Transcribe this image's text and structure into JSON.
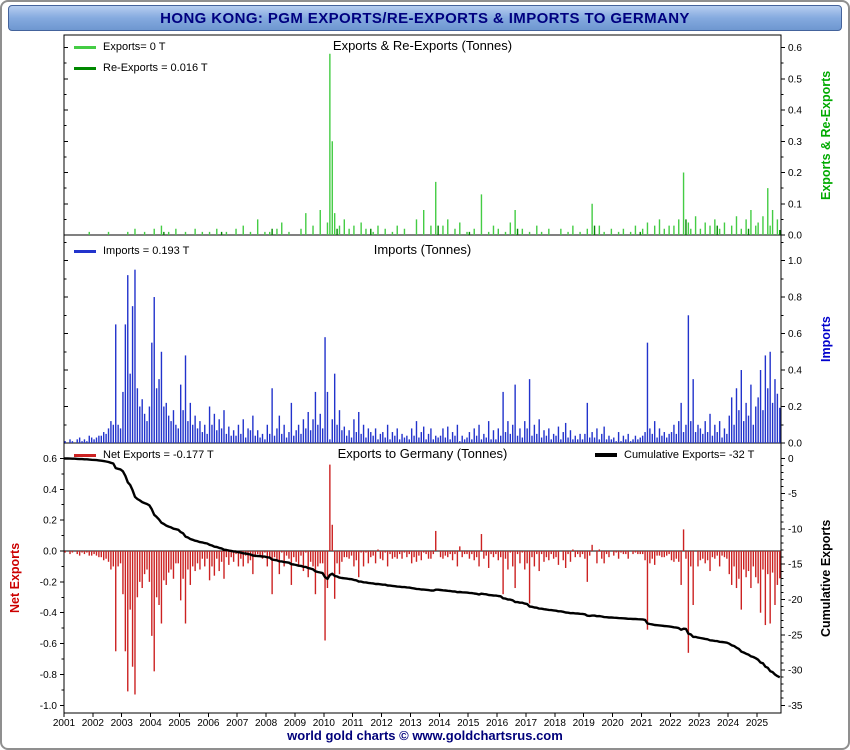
{
  "window": {
    "title": "HONG KONG: PGM EXPORTS/RE-EXPORTS & IMPORTS TO GERMANY",
    "footer": "world gold charts © www.goldchartsrus.com"
  },
  "colors": {
    "title_text": "#000080",
    "titlebar_gradient_top": "#b6cdf0",
    "titlebar_gradient_bottom": "#6e97d0",
    "exports": "#44cc44",
    "reexports": "#008800",
    "imports": "#2233cc",
    "net_exports": "#cc2222",
    "cumulative": "#000000",
    "axis_label_green": "#00aa00",
    "axis_label_blue": "#0000cc",
    "axis_label_red": "#cc0000",
    "footer_text": "#00007a"
  },
  "x_axis": {
    "start_year": 2001,
    "months": 298,
    "tick_years": [
      2001,
      2002,
      2003,
      2004,
      2005,
      2006,
      2007,
      2008,
      2009,
      2010,
      2011,
      2012,
      2013,
      2014,
      2015,
      2016,
      2017,
      2018,
      2019,
      2020,
      2021,
      2022,
      2023,
      2024,
      2025
    ]
  },
  "chart_data": [
    {
      "id": "exports-reexports",
      "type": "bar",
      "title": "Exports & Re-Exports (Tonnes)",
      "axis_label": "Exports & Re-Exports",
      "axis_side": "right",
      "ylim": [
        0,
        0.64
      ],
      "yticks": [
        0.0,
        0.1,
        0.2,
        0.3,
        0.4,
        0.5,
        0.6
      ],
      "summary": {
        "latest_exports_tonnes": 0,
        "latest_reexports_tonnes": 0.016
      },
      "legend": [
        {
          "label": "Exports= 0 T",
          "series": "Exports"
        },
        {
          "label": "Re-Exports = 0.016 T",
          "series": "Re-Exports"
        }
      ],
      "series": [
        {
          "name": "Exports",
          "color": "#44cc44",
          "sparse_monthly_tonnes": [
            [
              10,
              0.01
            ],
            [
              18,
              0.01
            ],
            [
              26,
              0.01
            ],
            [
              29,
              0.02
            ],
            [
              33,
              0.01
            ],
            [
              37,
              0.02
            ],
            [
              40,
              0.03
            ],
            [
              43,
              0.01
            ],
            [
              46,
              0.02
            ],
            [
              50,
              0.01
            ],
            [
              54,
              0.02
            ],
            [
              57,
              0.01
            ],
            [
              60,
              0.01
            ],
            [
              63,
              0.02
            ],
            [
              67,
              0.01
            ],
            [
              71,
              0.02
            ],
            [
              74,
              0.03
            ],
            [
              77,
              0.01
            ],
            [
              80,
              0.05
            ],
            [
              83,
              0.01
            ],
            [
              85,
              0.01
            ],
            [
              88,
              0.02
            ],
            [
              90,
              0.04
            ],
            [
              93,
              0.01
            ],
            [
              98,
              0.02
            ],
            [
              100,
              0.07
            ],
            [
              103,
              0.03
            ],
            [
              106,
              0.08
            ],
            [
              109,
              0.04
            ],
            [
              110,
              0.58
            ],
            [
              111,
              0.3
            ],
            [
              112,
              0.07
            ],
            [
              114,
              0.03
            ],
            [
              116,
              0.05
            ],
            [
              118,
              0.02
            ],
            [
              120,
              0.03
            ],
            [
              123,
              0.04
            ],
            [
              125,
              0.02
            ],
            [
              128,
              0.01
            ],
            [
              130,
              0.03
            ],
            [
              133,
              0.02
            ],
            [
              136,
              0.01
            ],
            [
              138,
              0.03
            ],
            [
              141,
              0.02
            ],
            [
              146,
              0.05
            ],
            [
              149,
              0.08
            ],
            [
              152,
              0.03
            ],
            [
              154,
              0.17
            ],
            [
              157,
              0.03
            ],
            [
              159,
              0.05
            ],
            [
              162,
              0.02
            ],
            [
              164,
              0.04
            ],
            [
              167,
              0.01
            ],
            [
              170,
              0.02
            ],
            [
              173,
              0.13
            ],
            [
              176,
              0.01
            ],
            [
              178,
              0.03
            ],
            [
              180,
              0.02
            ],
            [
              183,
              0.01
            ],
            [
              185,
              0.04
            ],
            [
              187,
              0.08
            ],
            [
              190,
              0.02
            ],
            [
              193,
              0.01
            ],
            [
              196,
              0.03
            ],
            [
              198,
              0.01
            ],
            [
              201,
              0.02
            ],
            [
              206,
              0.02
            ],
            [
              209,
              0.01
            ],
            [
              211,
              0.03
            ],
            [
              214,
              0.01
            ],
            [
              217,
              0.02
            ],
            [
              219,
              0.1
            ],
            [
              222,
              0.03
            ],
            [
              224,
              0.01
            ],
            [
              227,
              0.02
            ],
            [
              230,
              0.01
            ],
            [
              232,
              0.02
            ],
            [
              235,
              0.01
            ],
            [
              237,
              0.03
            ],
            [
              240,
              0.02
            ],
            [
              242,
              0.04
            ],
            [
              245,
              0.03
            ],
            [
              247,
              0.05
            ],
            [
              249,
              0.02
            ],
            [
              251,
              0.03
            ],
            [
              253,
              0.03
            ],
            [
              255,
              0.05
            ],
            [
              257,
              0.2
            ],
            [
              259,
              0.04
            ],
            [
              260,
              0.02
            ],
            [
              262,
              0.06
            ],
            [
              264,
              0.02
            ],
            [
              266,
              0.04
            ],
            [
              268,
              0.03
            ],
            [
              270,
              0.05
            ],
            [
              272,
              0.02
            ],
            [
              274,
              0.04
            ],
            [
              277,
              0.03
            ],
            [
              279,
              0.06
            ],
            [
              281,
              0.02
            ],
            [
              283,
              0.05
            ],
            [
              285,
              0.08
            ],
            [
              287,
              0.03
            ],
            [
              288,
              0.04
            ],
            [
              290,
              0.06
            ],
            [
              292,
              0.15
            ],
            [
              293,
              0.03
            ],
            [
              294,
              0.08
            ],
            [
              296,
              0.05
            ]
          ]
        },
        {
          "name": "Re-Exports",
          "color": "#008800",
          "sparse_monthly_tonnes": [
            [
              41,
              0.01
            ],
            [
              65,
              0.01
            ],
            [
              86,
              0.02
            ],
            [
              113,
              0.02
            ],
            [
              127,
              0.02
            ],
            [
              155,
              0.03
            ],
            [
              168,
              0.01
            ],
            [
              188,
              0.02
            ],
            [
              220,
              0.03
            ],
            [
              239,
              0.01
            ],
            [
              258,
              0.05
            ],
            [
              271,
              0.03
            ],
            [
              284,
              0.02
            ],
            [
              297,
              0.016
            ]
          ]
        }
      ]
    },
    {
      "id": "imports",
      "type": "bar",
      "title": "Imports (Tonnes)",
      "axis_label": "Imports",
      "axis_side": "right",
      "ylim": [
        0,
        1.14
      ],
      "yticks": [
        0.0,
        0.2,
        0.4,
        0.6,
        0.8,
        1.0
      ],
      "summary": {
        "latest_imports_tonnes": 0.193
      },
      "legend": [
        {
          "label": "Imports = 0.193 T",
          "series": "Imports"
        }
      ],
      "series": [
        {
          "name": "Imports",
          "color": "#2233cc",
          "monthly_tonnes_by_year": [
            [
              0.01,
              0.0,
              0.02,
              0.01,
              0.0,
              0.02,
              0.03,
              0.01,
              0.02,
              0.01,
              0.04,
              0.03
            ],
            [
              0.02,
              0.03,
              0.04,
              0.04,
              0.06,
              0.05,
              0.08,
              0.12,
              0.1,
              0.65,
              0.1,
              0.08
            ],
            [
              0.28,
              0.65,
              0.92,
              0.38,
              0.75,
              0.95,
              0.3,
              0.2,
              0.24,
              0.16,
              0.12,
              0.2
            ],
            [
              0.55,
              0.8,
              0.3,
              0.35,
              0.5,
              0.2,
              0.22,
              0.15,
              0.12,
              0.18,
              0.1,
              0.08
            ],
            [
              0.32,
              0.18,
              0.48,
              0.12,
              0.22,
              0.1,
              0.15,
              0.08,
              0.12,
              0.06,
              0.1,
              0.05
            ],
            [
              0.2,
              0.1,
              0.16,
              0.07,
              0.13,
              0.08,
              0.18,
              0.05,
              0.09,
              0.04,
              0.07,
              0.04
            ],
            [
              0.1,
              0.05,
              0.13,
              0.03,
              0.08,
              0.07,
              0.15,
              0.04,
              0.07,
              0.03,
              0.05,
              0.02
            ],
            [
              0.1,
              0.05,
              0.3,
              0.04,
              0.08,
              0.15,
              0.05,
              0.1,
              0.03,
              0.06,
              0.22,
              0.04
            ],
            [
              0.07,
              0.1,
              0.05,
              0.13,
              0.08,
              0.17,
              0.07,
              0.13,
              0.28,
              0.1,
              0.16,
              0.08
            ],
            [
              0.58,
              0.28,
              0.02,
              0.13,
              0.38,
              0.1,
              0.18,
              0.07,
              0.09,
              0.04,
              0.07,
              0.03
            ],
            [
              0.13,
              0.06,
              0.17,
              0.05,
              0.1,
              0.03,
              0.08,
              0.06,
              0.04,
              0.08,
              0.02,
              0.05
            ],
            [
              0.06,
              0.03,
              0.1,
              0.02,
              0.06,
              0.04,
              0.08,
              0.02,
              0.05,
              0.03,
              0.04,
              0.02
            ],
            [
              0.08,
              0.04,
              0.12,
              0.03,
              0.06,
              0.09,
              0.02,
              0.05,
              0.08,
              0.02,
              0.04,
              0.03
            ],
            [
              0.04,
              0.08,
              0.03,
              0.09,
              0.02,
              0.06,
              0.04,
              0.1,
              0.01,
              0.04,
              0.02,
              0.03
            ],
            [
              0.06,
              0.02,
              0.08,
              0.04,
              0.1,
              0.02,
              0.05,
              0.03,
              0.12,
              0.02,
              0.07,
              0.02
            ],
            [
              0.08,
              0.04,
              0.28,
              0.06,
              0.12,
              0.05,
              0.1,
              0.32,
              0.04,
              0.08,
              0.03,
              0.12
            ],
            [
              0.08,
              0.35,
              0.04,
              0.1,
              0.05,
              0.13,
              0.03,
              0.07,
              0.04,
              0.08,
              0.02,
              0.05
            ],
            [
              0.04,
              0.09,
              0.02,
              0.06,
              0.11,
              0.03,
              0.07,
              0.02,
              0.04,
              0.02,
              0.05,
              0.02
            ],
            [
              0.05,
              0.22,
              0.03,
              0.06,
              0.03,
              0.08,
              0.02,
              0.05,
              0.09,
              0.02,
              0.04,
              0.02
            ],
            [
              0.03,
              0.01,
              0.06,
              0.01,
              0.04,
              0.02,
              0.05,
              0.01,
              0.02,
              0.04,
              0.02,
              0.03
            ],
            [
              0.04,
              0.06,
              0.55,
              0.08,
              0.05,
              0.12,
              0.03,
              0.08,
              0.04,
              0.06,
              0.03,
              0.05
            ],
            [
              0.06,
              0.1,
              0.05,
              0.12,
              0.22,
              0.06,
              0.1,
              0.7,
              0.12,
              0.35,
              0.06,
              0.1
            ],
            [
              0.08,
              0.05,
              0.12,
              0.06,
              0.16,
              0.04,
              0.1,
              0.06,
              0.12,
              0.03,
              0.08,
              0.05
            ],
            [
              0.15,
              0.25,
              0.1,
              0.3,
              0.18,
              0.4,
              0.12,
              0.22,
              0.15,
              0.32,
              0.1,
              0.2
            ],
            [
              0.25,
              0.4,
              0.18,
              0.48,
              0.3,
              0.5,
              0.22,
              0.35,
              0.27,
              0.193
            ]
          ]
        }
      ]
    },
    {
      "id": "exports-to-germany",
      "type": "bar+line",
      "title": "Exports to Germany (Tonnes)",
      "left_axis": {
        "label": "Net Exports",
        "color": "#cc0000",
        "ticks": [
          0.6,
          0.4,
          0.2,
          0.0,
          -0.2,
          -0.4,
          -0.6,
          -0.8,
          -1.0
        ],
        "lim": [
          -1.05,
          0.7
        ]
      },
      "right_axis": {
        "label": "Cumulative Exports",
        "color": "#000000",
        "ticks": [
          0,
          -5,
          -10,
          -15,
          -20,
          -25,
          -30,
          -35
        ],
        "lim": [
          -35,
          0
        ]
      },
      "summary": {
        "latest_net_exports_tonnes": -0.177,
        "cumulative_exports_tonnes": -32
      },
      "legend": [
        {
          "label": "Net Exports = -0.177 T",
          "series": "Net Exports",
          "color": "#cc2222"
        },
        {
          "label": "Cumulative Exports= -32 T",
          "series": "Cumulative Exports",
          "color": "#000000"
        }
      ]
    }
  ]
}
